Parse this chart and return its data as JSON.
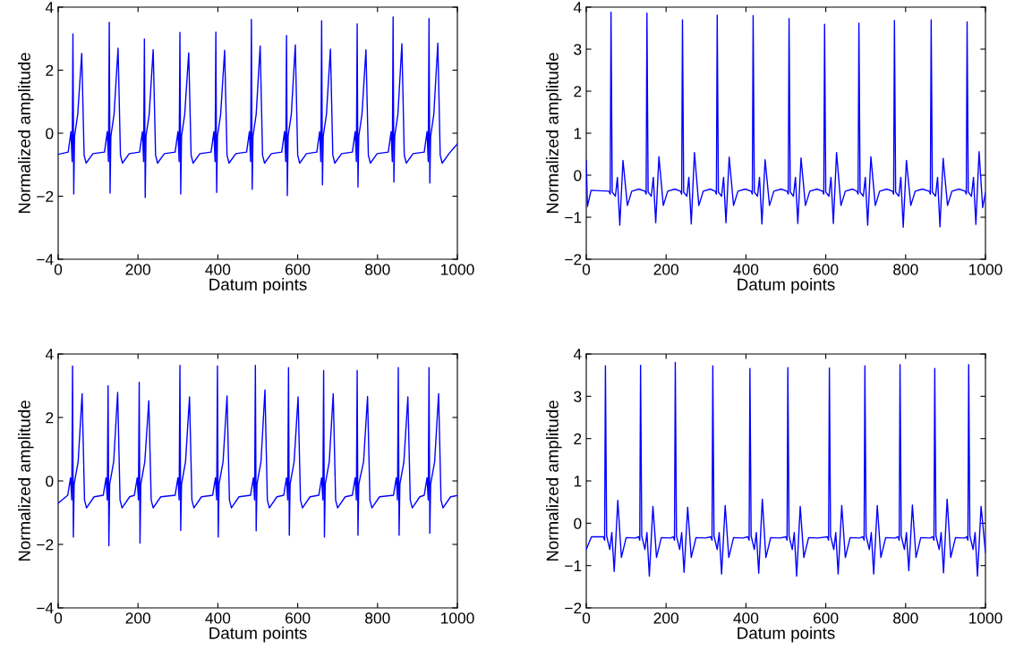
{
  "chart_data": [
    {
      "type": "line",
      "xlabel": "Datum points",
      "ylabel": "Normalized amplitude",
      "xlim": [
        0,
        1000
      ],
      "ylim": [
        -4,
        4
      ],
      "xticks": [
        0,
        200,
        400,
        600,
        800,
        1000
      ],
      "yticks": [
        {
          "value": -4,
          "label": "−4"
        },
        {
          "value": -2,
          "label": "−2"
        },
        0,
        2,
        4
      ],
      "series": [
        {
          "color": "#0000ff",
          "x": [
            0,
            25,
            32,
            35,
            37,
            39,
            41,
            49,
            59,
            65,
            70,
            87,
            116,
            123,
            126,
            128,
            130,
            132,
            140,
            150,
            156,
            161,
            178,
            204,
            211,
            214,
            216,
            218,
            220,
            228,
            238,
            244,
            249,
            266,
            293,
            300,
            303,
            305,
            307,
            309,
            317,
            327,
            333,
            338,
            355,
            383,
            390,
            393,
            395,
            397,
            399,
            407,
            417,
            423,
            428,
            445,
            472,
            479,
            482,
            484,
            486,
            488,
            496,
            506,
            512,
            517,
            534,
            560,
            567,
            570,
            572,
            574,
            576,
            584,
            594,
            600,
            605,
            622,
            648,
            655,
            658,
            660,
            662,
            664,
            672,
            682,
            688,
            693,
            710,
            737,
            744,
            747,
            749,
            751,
            753,
            761,
            771,
            777,
            782,
            799,
            827,
            834,
            837,
            839,
            841,
            843,
            851,
            861,
            867,
            872,
            889,
            917,
            924,
            927,
            929,
            931,
            933,
            941,
            951,
            957,
            962,
            979,
            1000
          ],
          "values": [
            -0.67,
            -0.6,
            0.05,
            -0.9,
            3.15,
            -1.93,
            -0.1,
            0.6,
            2.53,
            -0.7,
            -0.95,
            -0.65,
            -0.6,
            0.05,
            -0.9,
            3.52,
            -1.9,
            -0.1,
            0.6,
            2.7,
            -0.7,
            -0.95,
            -0.65,
            -0.6,
            0.05,
            -0.9,
            2.99,
            -2.04,
            -0.1,
            0.6,
            2.65,
            -0.7,
            -0.95,
            -0.65,
            -0.6,
            0.05,
            -0.9,
            3.2,
            -1.93,
            -0.1,
            0.6,
            2.55,
            -0.7,
            -0.95,
            -0.65,
            -0.6,
            0.05,
            -0.9,
            3.21,
            -1.88,
            -0.1,
            0.6,
            2.63,
            -0.7,
            -0.95,
            -0.65,
            -0.6,
            0.05,
            -0.9,
            3.61,
            -1.78,
            -0.1,
            0.6,
            2.77,
            -0.7,
            -0.95,
            -0.65,
            -0.6,
            0.05,
            -0.9,
            3.1,
            -1.98,
            -0.1,
            0.6,
            2.8,
            -0.7,
            -0.95,
            -0.65,
            -0.6,
            0.05,
            -0.9,
            3.57,
            -1.64,
            -0.1,
            0.6,
            2.67,
            -0.7,
            -0.95,
            -0.65,
            -0.6,
            0.05,
            -0.9,
            3.47,
            -1.71,
            -0.1,
            0.6,
            2.65,
            -0.7,
            -0.95,
            -0.65,
            -0.6,
            0.05,
            -0.9,
            3.69,
            -1.55,
            -0.1,
            0.6,
            2.84,
            -0.7,
            -0.95,
            -0.65,
            -0.6,
            0.05,
            -0.9,
            3.64,
            -1.58,
            -0.1,
            0.6,
            2.86,
            -0.7,
            -0.95,
            -0.65,
            -0.34
          ]
        }
      ]
    },
    {
      "type": "line",
      "xlabel": "Datum points",
      "ylabel": "Normalized amplitude",
      "xlim": [
        0,
        1000
      ],
      "ylim": [
        -2,
        4
      ],
      "xticks": [
        0,
        200,
        400,
        600,
        800,
        1000
      ],
      "yticks": [
        {
          "value": -2,
          "label": "−2"
        },
        {
          "value": -1,
          "label": "−1"
        },
        0,
        1,
        2,
        3,
        4
      ],
      "series": [
        {
          "color": "#0000ff",
          "x": [
            0,
            3,
            12,
            57,
            60,
            62,
            65,
            73,
            78,
            84,
            92,
            103,
            114,
            132,
            147,
            150,
            152,
            155,
            163,
            168,
            174,
            182,
            193,
            204,
            222,
            236,
            239,
            241,
            244,
            252,
            257,
            263,
            271,
            282,
            293,
            311,
            323,
            326,
            328,
            331,
            339,
            344,
            350,
            358,
            369,
            380,
            398,
            413,
            416,
            418,
            421,
            429,
            434,
            440,
            448,
            459,
            470,
            488,
            503,
            506,
            508,
            511,
            519,
            524,
            530,
            538,
            549,
            560,
            578,
            592,
            595,
            597,
            600,
            608,
            613,
            619,
            627,
            638,
            649,
            667,
            678,
            681,
            683,
            686,
            694,
            699,
            705,
            713,
            724,
            735,
            753,
            767,
            770,
            772,
            775,
            783,
            788,
            794,
            802,
            813,
            824,
            842,
            859,
            862,
            864,
            867,
            875,
            880,
            886,
            894,
            905,
            916,
            934,
            949,
            952,
            954,
            957,
            965,
            970,
            976,
            984,
            993,
            1000
          ],
          "values": [
            0.35,
            -0.74,
            -0.36,
            -0.38,
            -0.45,
            3.88,
            -0.4,
            -0.5,
            -0.05,
            -1.19,
            0.35,
            -0.72,
            -0.38,
            -0.33,
            -0.38,
            -0.45,
            3.86,
            -0.4,
            -0.5,
            -0.05,
            -1.13,
            0.44,
            -0.72,
            -0.38,
            -0.33,
            -0.38,
            -0.45,
            3.7,
            -0.4,
            -0.5,
            -0.05,
            -1.16,
            0.54,
            -0.72,
            -0.38,
            -0.33,
            -0.38,
            -0.45,
            3.81,
            -0.4,
            -0.5,
            -0.05,
            -1.13,
            0.43,
            -0.72,
            -0.38,
            -0.33,
            -0.38,
            -0.45,
            3.8,
            -0.4,
            -0.5,
            -0.05,
            -1.16,
            0.37,
            -0.72,
            -0.38,
            -0.33,
            -0.38,
            -0.45,
            3.73,
            -0.4,
            -0.5,
            -0.05,
            -1.15,
            0.41,
            -0.72,
            -0.38,
            -0.33,
            -0.38,
            -0.45,
            3.59,
            -0.4,
            -0.5,
            -0.05,
            -1.15,
            0.54,
            -0.72,
            -0.38,
            -0.33,
            -0.38,
            -0.45,
            3.62,
            -0.4,
            -0.5,
            -0.05,
            -1.19,
            0.44,
            -0.72,
            -0.38,
            -0.33,
            -0.38,
            -0.45,
            3.68,
            -0.4,
            -0.5,
            -0.05,
            -1.24,
            0.35,
            -0.72,
            -0.38,
            -0.33,
            -0.38,
            -0.45,
            3.7,
            -0.4,
            -0.5,
            -0.05,
            -1.23,
            0.4,
            -0.72,
            -0.38,
            -0.33,
            -0.38,
            -0.45,
            3.65,
            -0.4,
            -0.5,
            -0.05,
            -1.17,
            0.56,
            -0.77,
            -0.41
          ]
        }
      ]
    },
    {
      "type": "line",
      "xlabel": "Datum points",
      "ylabel": "Normalized amplitude",
      "xlim": [
        0,
        1000
      ],
      "ylim": [
        -4,
        4
      ],
      "xticks": [
        0,
        200,
        400,
        600,
        800,
        1000
      ],
      "yticks": [
        {
          "value": -4,
          "label": "−4"
        },
        {
          "value": -2,
          "label": "−2"
        },
        0,
        2,
        4
      ],
      "series": [
        {
          "color": "#0000ff",
          "x": [
            0,
            24,
            31,
            34,
            36,
            38,
            40,
            50,
            60,
            66,
            71,
            90,
            113,
            120,
            123,
            125,
            127,
            129,
            139,
            149,
            155,
            160,
            179,
            191,
            198,
            201,
            203,
            205,
            207,
            217,
            227,
            233,
            238,
            257,
            293,
            300,
            303,
            305,
            307,
            309,
            319,
            329,
            335,
            340,
            359,
            387,
            394,
            397,
            399,
            401,
            403,
            413,
            423,
            429,
            434,
            453,
            482,
            489,
            492,
            494,
            496,
            498,
            508,
            518,
            524,
            529,
            548,
            565,
            572,
            575,
            577,
            579,
            581,
            591,
            601,
            607,
            612,
            631,
            653,
            660,
            663,
            665,
            667,
            669,
            679,
            689,
            695,
            700,
            719,
            737,
            744,
            747,
            749,
            751,
            753,
            765,
            775,
            781,
            786,
            805,
            840,
            847,
            850,
            852,
            854,
            856,
            866,
            876,
            882,
            887,
            906,
            917,
            924,
            927,
            929,
            931,
            933,
            943,
            953,
            959,
            964,
            983,
            1000
          ],
          "values": [
            -0.7,
            -0.45,
            0.1,
            -0.6,
            3.62,
            -1.77,
            -0.1,
            0.6,
            2.75,
            -0.6,
            -0.85,
            -0.5,
            -0.45,
            0.1,
            -0.6,
            3.0,
            -2.04,
            -0.1,
            0.6,
            2.79,
            -0.6,
            -0.85,
            -0.5,
            -0.45,
            0.1,
            -0.6,
            3.11,
            -1.96,
            -0.1,
            0.6,
            2.53,
            -0.6,
            -0.85,
            -0.5,
            -0.45,
            0.1,
            -0.6,
            3.64,
            -1.56,
            -0.1,
            0.6,
            2.65,
            -0.6,
            -0.85,
            -0.5,
            -0.45,
            0.1,
            -0.6,
            3.62,
            -1.77,
            -0.1,
            0.6,
            2.68,
            -0.6,
            -0.85,
            -0.5,
            -0.45,
            0.1,
            -0.6,
            3.64,
            -1.57,
            -0.1,
            0.6,
            2.87,
            -0.6,
            -0.85,
            -0.5,
            -0.45,
            0.1,
            -0.6,
            3.57,
            -1.71,
            -0.1,
            0.6,
            2.65,
            -0.6,
            -0.85,
            -0.5,
            -0.45,
            0.1,
            -0.6,
            3.48,
            -1.77,
            -0.1,
            0.6,
            2.75,
            -0.6,
            -0.85,
            -0.5,
            -0.45,
            0.1,
            -0.6,
            3.48,
            -1.71,
            -0.1,
            0.6,
            2.66,
            -0.6,
            -0.85,
            -0.5,
            -0.45,
            0.1,
            -0.6,
            3.57,
            -1.71,
            -0.1,
            0.6,
            2.65,
            -0.6,
            -0.85,
            -0.5,
            -0.45,
            0.1,
            -0.6,
            3.57,
            -1.65,
            -0.1,
            0.6,
            2.75,
            -0.6,
            -0.85,
            -0.5,
            -0.46
          ]
        }
      ]
    },
    {
      "type": "line",
      "xlabel": "Datum points",
      "ylabel": "Normalized amplitude",
      "xlim": [
        0,
        1000
      ],
      "ylim": [
        -2,
        4
      ],
      "xticks": [
        0,
        200,
        400,
        600,
        800,
        1000
      ],
      "yticks": [
        {
          "value": -2,
          "label": "−2"
        },
        {
          "value": -1,
          "label": "−1"
        },
        0,
        1,
        2,
        3,
        4
      ],
      "series": [
        {
          "color": "#0000ff",
          "x": [
            0,
            13,
            43,
            46,
            48,
            51,
            59,
            64,
            70,
            79,
            88,
            100,
            123,
            131,
            134,
            136,
            139,
            147,
            152,
            158,
            167,
            176,
            188,
            211,
            218,
            221,
            223,
            226,
            234,
            239,
            245,
            254,
            263,
            275,
            298,
            312,
            315,
            317,
            320,
            328,
            333,
            339,
            348,
            357,
            369,
            392,
            405,
            408,
            410,
            413,
            421,
            426,
            432,
            441,
            450,
            462,
            485,
            500,
            503,
            505,
            508,
            516,
            521,
            527,
            536,
            545,
            557,
            580,
            604,
            607,
            609,
            612,
            620,
            625,
            631,
            640,
            649,
            661,
            684,
            693,
            696,
            698,
            701,
            709,
            714,
            720,
            729,
            738,
            750,
            773,
            781,
            784,
            786,
            789,
            797,
            802,
            808,
            817,
            826,
            838,
            861,
            868,
            871,
            873,
            876,
            884,
            889,
            895,
            904,
            913,
            925,
            948,
            953,
            956,
            958,
            961,
            969,
            974,
            980,
            989,
            1000
          ],
          "values": [
            -0.62,
            -0.32,
            -0.32,
            -0.4,
            3.72,
            -0.3,
            -0.62,
            -0.22,
            -1.14,
            0.54,
            -0.81,
            -0.34,
            -0.35,
            -0.32,
            -0.4,
            3.73,
            -0.3,
            -0.62,
            -0.22,
            -1.25,
            0.4,
            -0.81,
            -0.34,
            -0.35,
            -0.32,
            -0.4,
            3.8,
            -0.3,
            -0.62,
            -0.22,
            -1.16,
            0.38,
            -0.81,
            -0.34,
            -0.35,
            -0.32,
            -0.4,
            3.72,
            -0.3,
            -0.62,
            -0.22,
            -1.2,
            0.42,
            -0.81,
            -0.34,
            -0.35,
            -0.32,
            -0.4,
            3.66,
            -0.3,
            -0.62,
            -0.22,
            -1.18,
            0.57,
            -0.81,
            -0.34,
            -0.35,
            -0.32,
            -0.4,
            3.68,
            -0.3,
            -0.62,
            -0.22,
            -1.25,
            0.4,
            -0.81,
            -0.34,
            -0.35,
            -0.32,
            -0.4,
            3.67,
            -0.3,
            -0.62,
            -0.22,
            -1.2,
            0.42,
            -0.81,
            -0.34,
            -0.35,
            -0.32,
            -0.4,
            3.72,
            -0.3,
            -0.62,
            -0.22,
            -1.2,
            0.42,
            -0.81,
            -0.34,
            -0.35,
            -0.32,
            -0.4,
            3.75,
            -0.3,
            -0.62,
            -0.22,
            -1.12,
            0.43,
            -0.81,
            -0.34,
            -0.35,
            -0.32,
            -0.4,
            3.66,
            -0.3,
            -0.62,
            -0.22,
            -1.17,
            0.57,
            -0.81,
            -0.34,
            -0.35,
            -0.32,
            -0.4,
            3.75,
            -0.3,
            -0.62,
            -0.22,
            -1.25,
            0.4,
            -0.69
          ]
        }
      ]
    }
  ]
}
